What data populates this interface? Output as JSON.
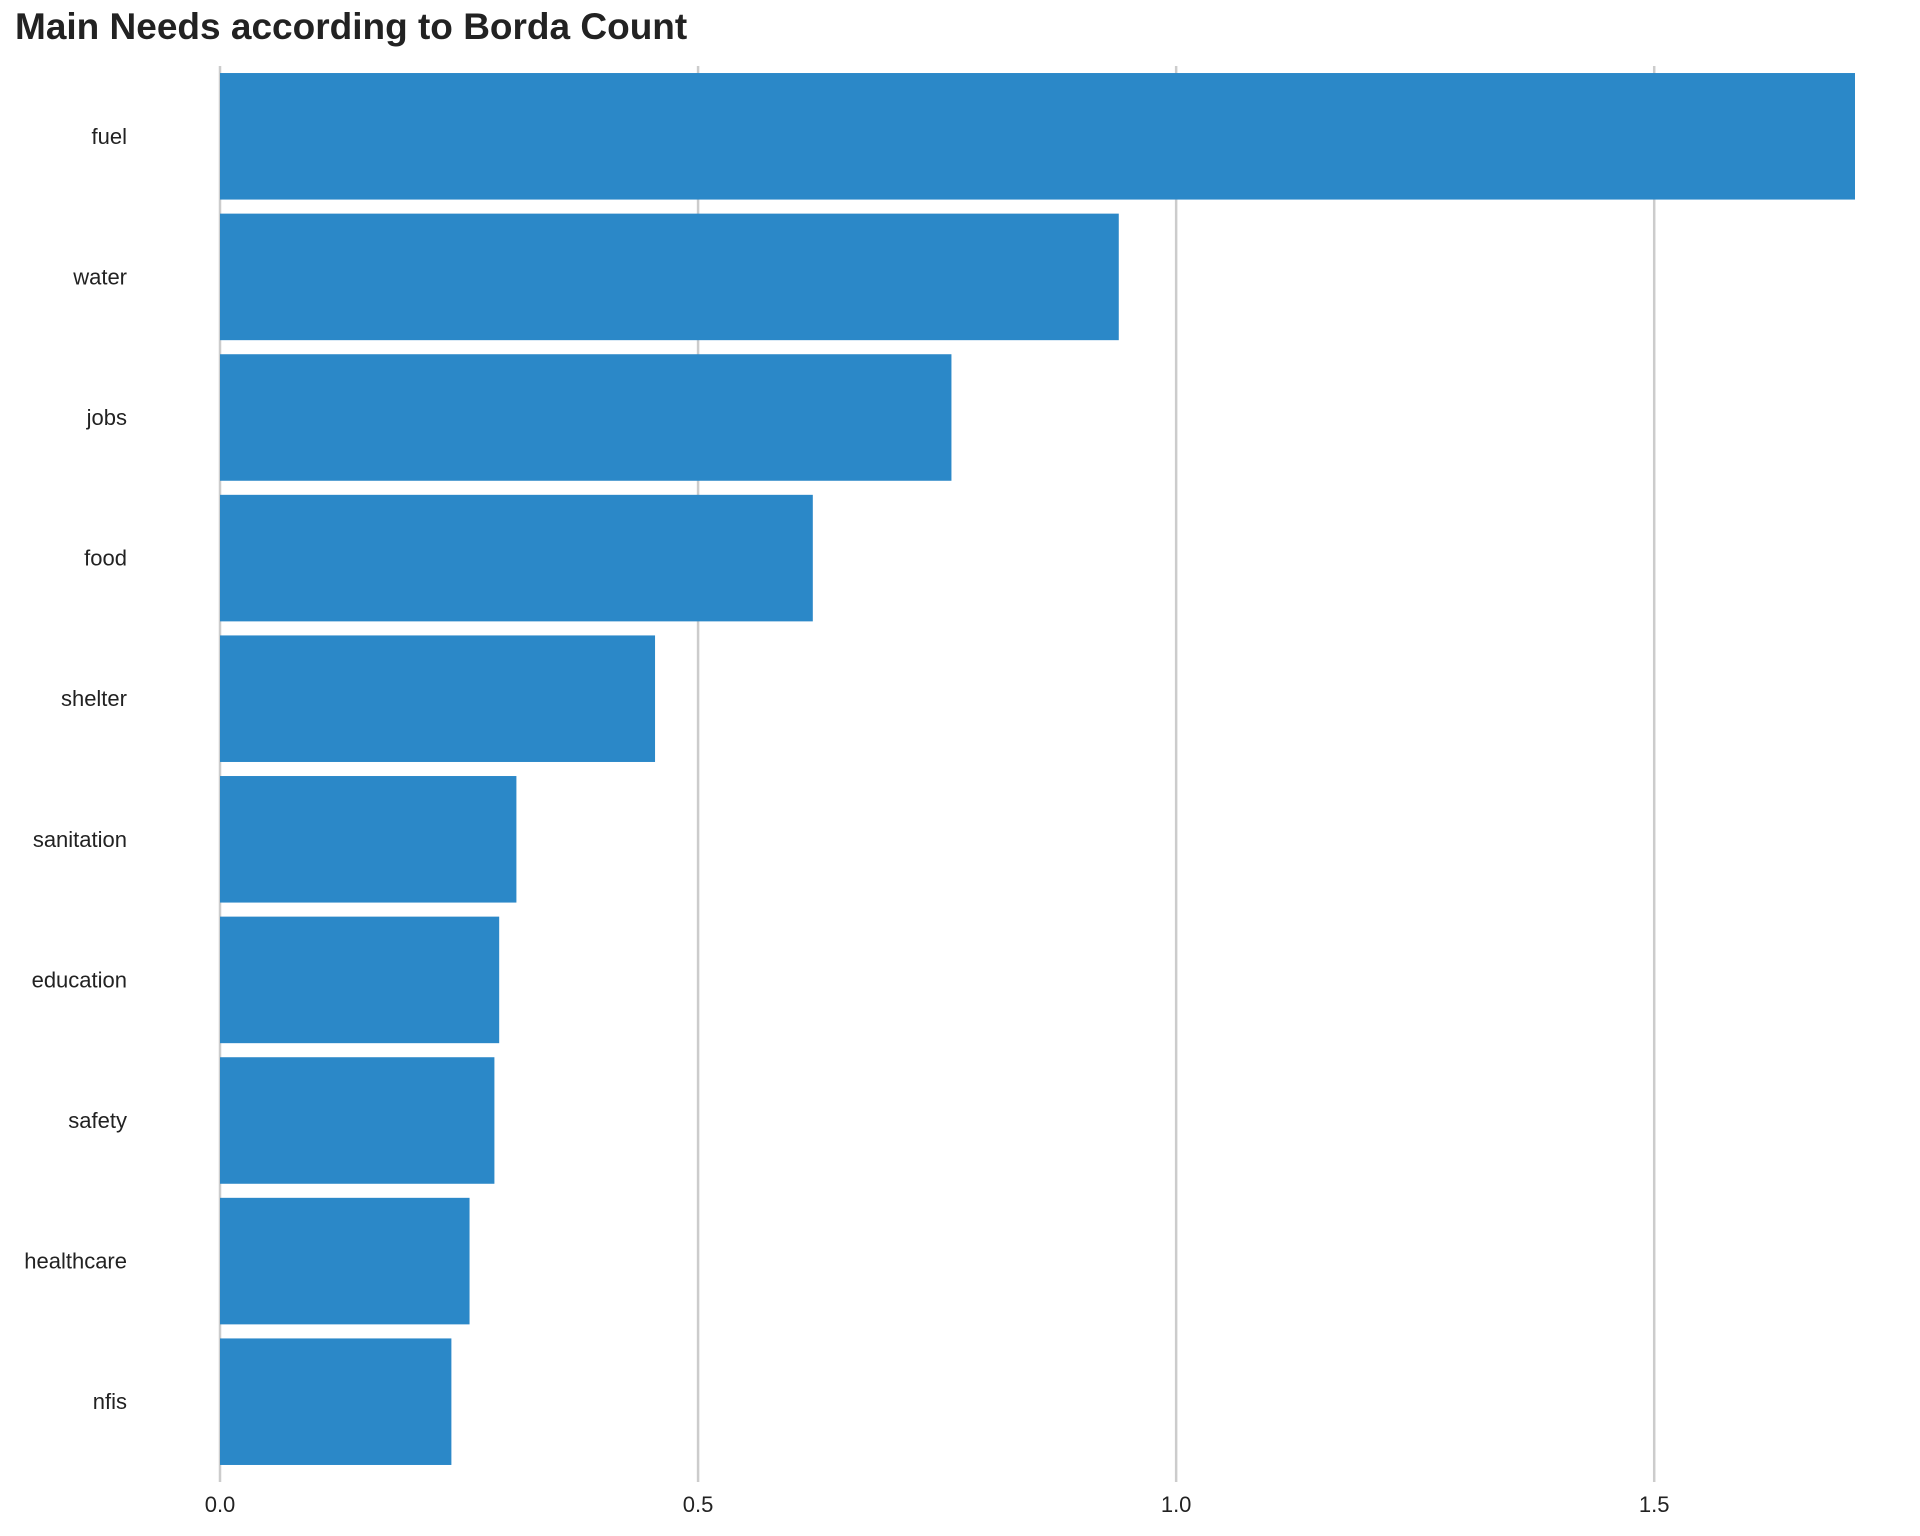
{
  "chart_data": {
    "type": "bar",
    "orientation": "horizontal",
    "title": "Main Needs according to Borda Count",
    "xlabel": "",
    "ylabel": "",
    "categories": [
      "fuel",
      "water",
      "jobs",
      "food",
      "shelter",
      "sanitation",
      "education",
      "safety",
      "healthcare",
      "nfis"
    ],
    "values": [
      1.71,
      0.94,
      0.765,
      0.62,
      0.455,
      0.31,
      0.292,
      0.287,
      0.261,
      0.242
    ],
    "xlim": [
      0,
      1.71
    ],
    "xticks": [
      0.0,
      0.5,
      1.0,
      1.5
    ],
    "xtick_labels": [
      "0.0",
      "0.5",
      "1.0",
      "1.5"
    ],
    "grid": "vertical",
    "bar_color": "#2b88c8",
    "legend": "none"
  }
}
